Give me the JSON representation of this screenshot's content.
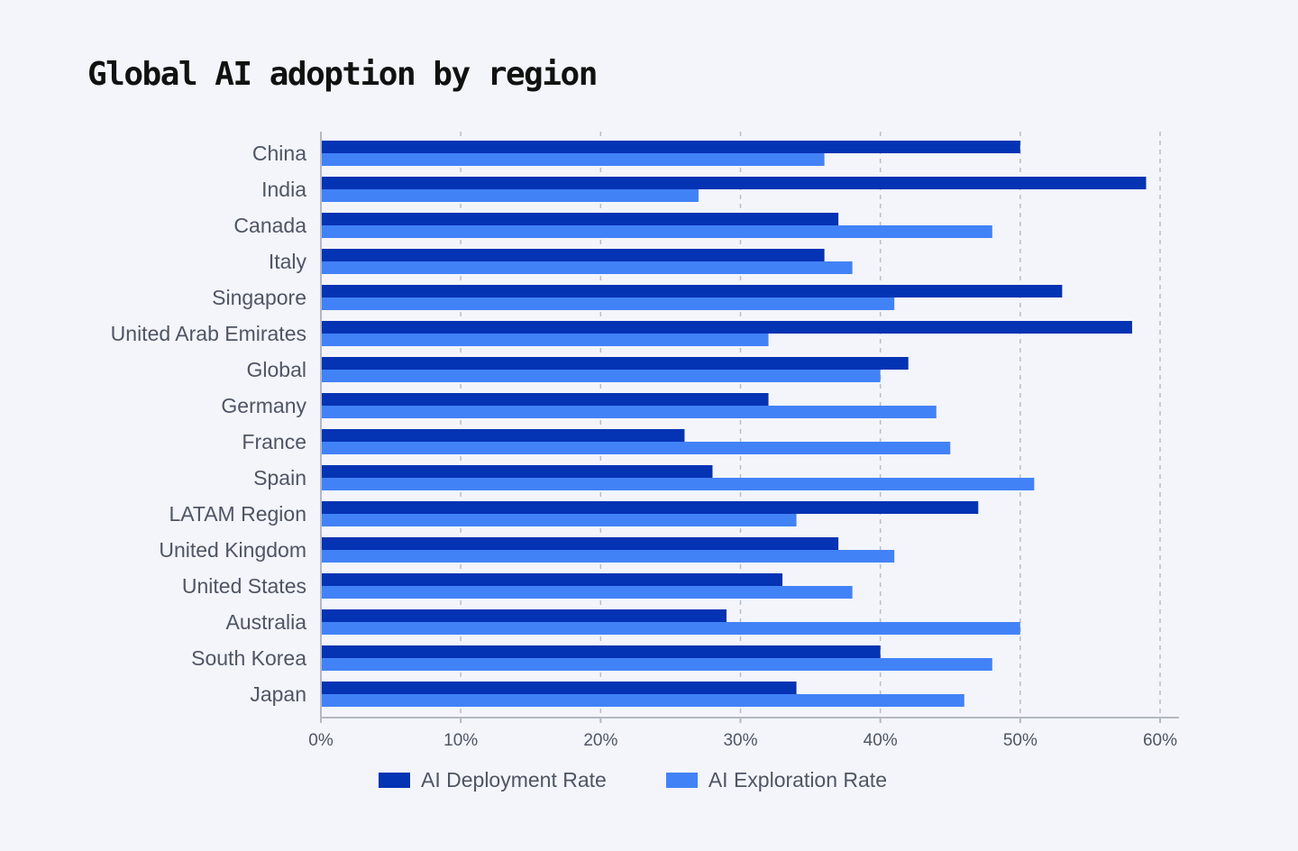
{
  "chart_data": {
    "type": "bar",
    "orientation": "horizontal",
    "title": "Global AI adoption by region",
    "xlabel": "",
    "ylabel": "",
    "xlim": [
      0,
      60
    ],
    "x_ticks": [
      "0%",
      "10%",
      "20%",
      "30%",
      "40%",
      "50%",
      "60%"
    ],
    "grid": "vertical dashed",
    "legend_position": "bottom",
    "categories": [
      "China",
      "India",
      "Canada",
      "Italy",
      "Singapore",
      "United Arab Emirates",
      "Global",
      "Germany",
      "France",
      "Spain",
      "LATAM Region",
      "United Kingdom",
      "United States",
      "Australia",
      "South Korea",
      "Japan"
    ],
    "series": [
      {
        "name": "AI Deployment Rate",
        "color": "#0433b3",
        "values": [
          50,
          59,
          37,
          36,
          53,
          58,
          42,
          32,
          26,
          28,
          47,
          37,
          33,
          29,
          40,
          34
        ]
      },
      {
        "name": "AI Exploration Rate",
        "color": "#4282f7",
        "values": [
          36,
          27,
          48,
          38,
          41,
          32,
          40,
          44,
          45,
          51,
          34,
          41,
          38,
          50,
          48,
          46
        ]
      }
    ]
  }
}
